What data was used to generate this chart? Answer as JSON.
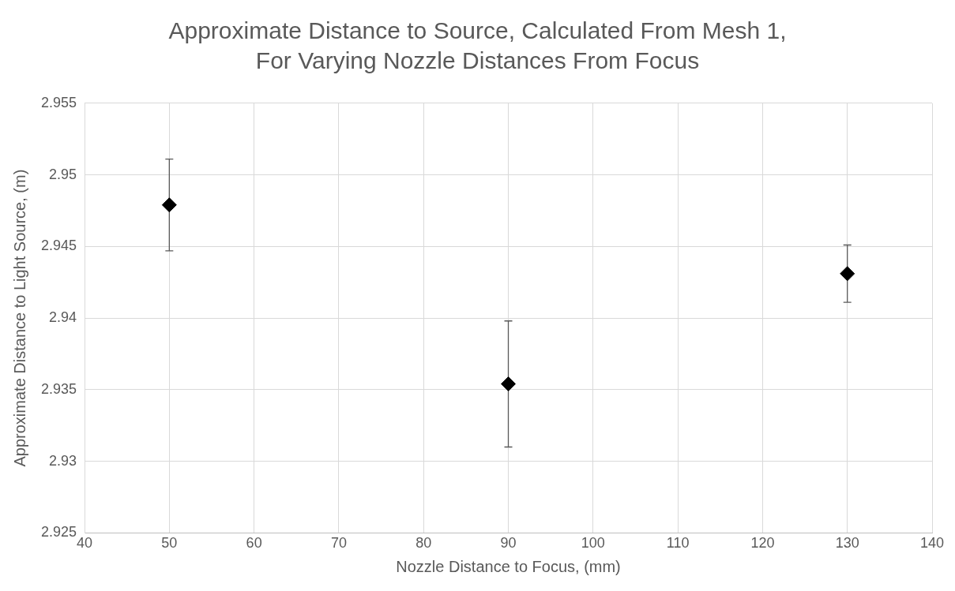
{
  "chart_data": {
    "type": "scatter",
    "title": "Approximate Distance to Source, Calculated From Mesh 1, For Varying Nozzle Distances From Focus",
    "xlabel": "Nozzle Distance to Focus, (mm)",
    "ylabel": "Approximate Distance to Light Source, (m)",
    "x": [
      50,
      90,
      130
    ],
    "values": [
      2.9479,
      2.9354,
      2.9431
    ],
    "errors": [
      0.0032,
      0.0044,
      0.002
    ],
    "color": "#000000",
    "marker": "diamond",
    "grid": true,
    "xlim": [
      40,
      140
    ],
    "xticks": [
      40,
      50,
      60,
      70,
      80,
      90,
      100,
      110,
      120,
      130,
      140
    ],
    "ylim": [
      2.925,
      2.955
    ],
    "yticks": [
      2.925,
      2.93,
      2.935,
      2.94,
      2.945,
      2.95,
      2.955
    ]
  }
}
